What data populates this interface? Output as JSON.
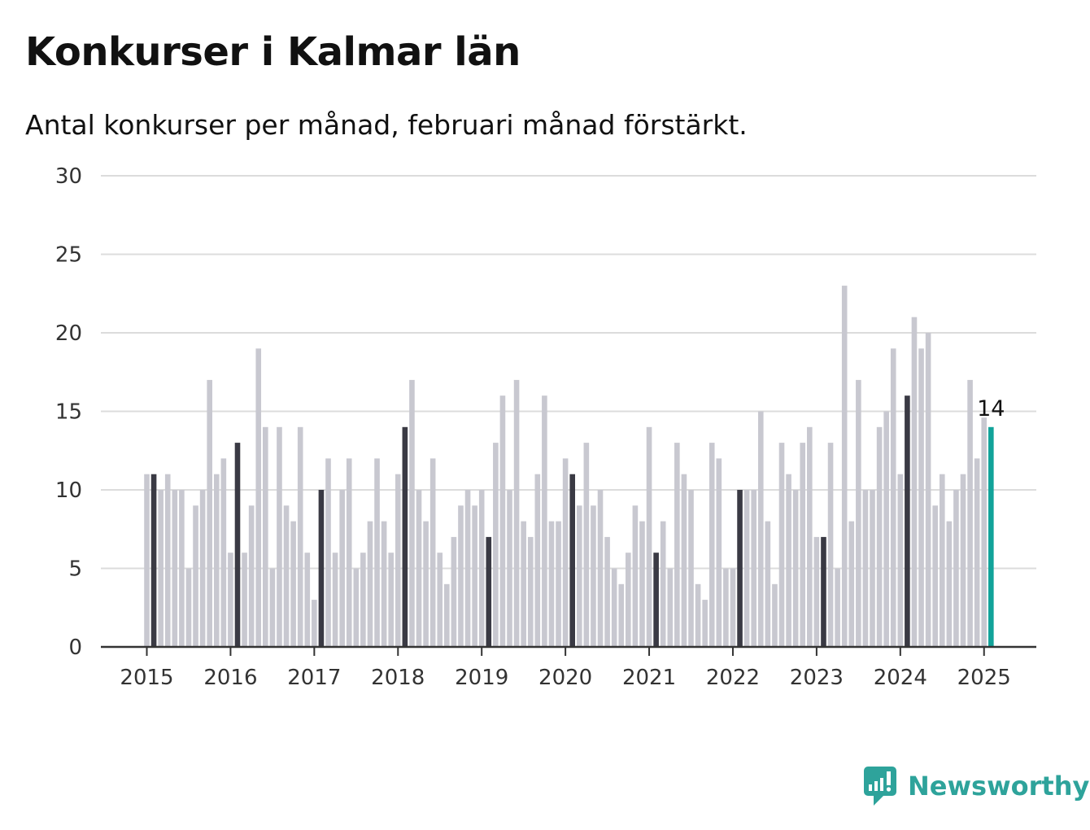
{
  "chart_data": {
    "type": "bar",
    "title": "Konkurser i Kalmar län",
    "subtitle": "Antal konkurser per månad, februari månad förstärkt.",
    "ylim": [
      0,
      30
    ],
    "y_ticks": [
      "0",
      "5",
      "10",
      "15",
      "20",
      "25",
      "30"
    ],
    "x_ticks": [
      "2015",
      "2016",
      "2017",
      "2018",
      "2019",
      "2020",
      "2021",
      "2022",
      "2023",
      "2024",
      "2025"
    ],
    "grid": true,
    "start_year": 2015,
    "values": [
      11,
      11,
      10,
      11,
      10,
      10,
      5,
      9,
      10,
      17,
      11,
      12,
      6,
      13,
      6,
      9,
      19,
      14,
      5,
      14,
      9,
      8,
      14,
      6,
      3,
      10,
      12,
      6,
      10,
      12,
      5,
      6,
      8,
      12,
      8,
      6,
      11,
      14,
      17,
      10,
      8,
      12,
      6,
      4,
      7,
      9,
      10,
      9,
      10,
      7,
      13,
      16,
      10,
      17,
      8,
      7,
      11,
      16,
      8,
      8,
      12,
      11,
      9,
      13,
      9,
      10,
      7,
      5,
      4,
      6,
      9,
      8,
      14,
      6,
      8,
      5,
      13,
      11,
      10,
      4,
      3,
      13,
      12,
      5,
      5,
      10,
      10,
      10,
      15,
      8,
      4,
      13,
      11,
      10,
      13,
      14,
      7,
      7,
      13,
      5,
      23,
      8,
      17,
      10,
      10,
      14,
      15,
      19,
      11,
      16,
      21,
      19,
      20,
      9,
      11,
      8,
      10,
      11,
      17,
      12,
      14.6,
      14
    ],
    "highlight_month": 2,
    "last_label": "14",
    "colors": {
      "regular": "#c8c8d0",
      "february": "#3a3a44",
      "latest": "#12a39a",
      "grid": "#dcdcdc",
      "axis": "#333333"
    }
  },
  "brand": {
    "name": "Newsworthy",
    "icon": "newsworthy-logo-icon",
    "color": "#2ea39b"
  }
}
